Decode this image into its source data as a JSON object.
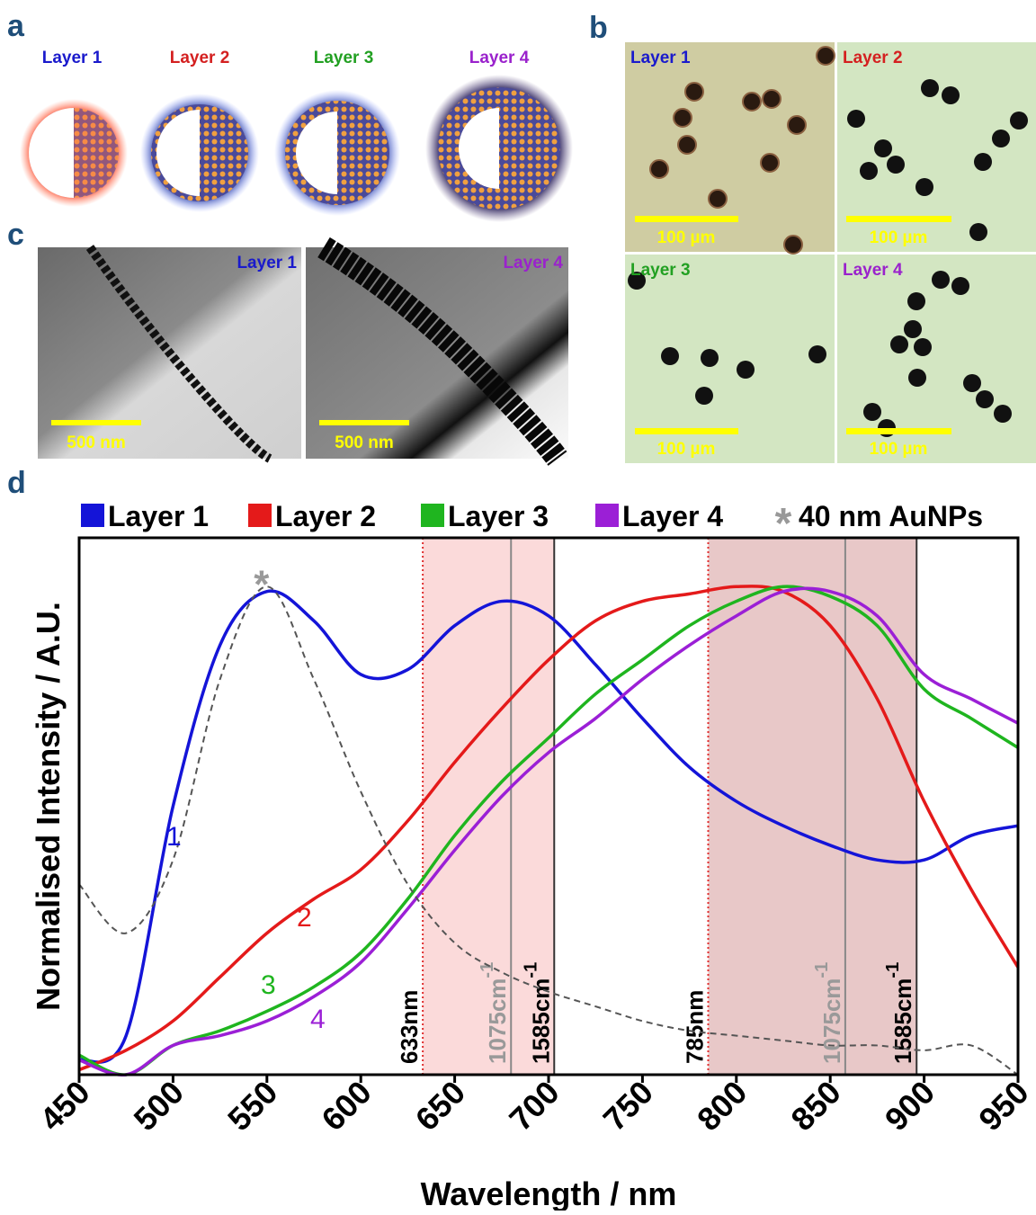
{
  "panel_a": {
    "label": "a",
    "layers": [
      "Layer 1",
      "Layer 2",
      "Layer 3",
      "Layer 4"
    ]
  },
  "panel_b": {
    "label": "b",
    "images": [
      {
        "title": "Layer 1",
        "scale": "100 µm"
      },
      {
        "title": "Layer 2",
        "scale": "100 µm"
      },
      {
        "title": "Layer 3",
        "scale": "100 µm"
      },
      {
        "title": "Layer 4",
        "scale": "100 µm"
      }
    ]
  },
  "panel_c": {
    "label": "c",
    "images": [
      {
        "title": "Layer 1",
        "scale": "500 nm"
      },
      {
        "title": "Layer 4",
        "scale": "500 nm"
      }
    ]
  },
  "chart_data": {
    "type": "line",
    "panel_label": "d",
    "xlabel": "Wavelength / nm",
    "ylabel": "Normalised Intensity / A.U.",
    "x": [
      450,
      475,
      500,
      525,
      550,
      575,
      600,
      625,
      650,
      675,
      700,
      725,
      750,
      775,
      800,
      825,
      850,
      875,
      900,
      925,
      950
    ],
    "xlim": [
      450,
      950
    ],
    "xticks": [
      450,
      500,
      550,
      600,
      650,
      700,
      750,
      800,
      850,
      900,
      950
    ],
    "ylim": [
      0,
      1.1
    ],
    "series": [
      {
        "name": "Layer 1",
        "label": "1",
        "color": "#1414d8",
        "values": [
          0.03,
          0.08,
          0.55,
          0.88,
          0.99,
          0.93,
          0.82,
          0.83,
          0.92,
          0.97,
          0.94,
          0.84,
          0.73,
          0.63,
          0.56,
          0.51,
          0.47,
          0.44,
          0.44,
          0.49,
          0.51
        ]
      },
      {
        "name": "Layer 2",
        "label": "2",
        "color": "#e41a1a",
        "values": [
          0.01,
          0.05,
          0.11,
          0.2,
          0.29,
          0.36,
          0.42,
          0.52,
          0.64,
          0.75,
          0.85,
          0.93,
          0.97,
          0.985,
          1.0,
          0.99,
          0.92,
          0.77,
          0.56,
          0.38,
          0.22
        ]
      },
      {
        "name": "Layer 3",
        "label": "3",
        "color": "#1fb51f",
        "values": [
          0.04,
          0.0,
          0.06,
          0.09,
          0.13,
          0.18,
          0.25,
          0.36,
          0.49,
          0.6,
          0.69,
          0.78,
          0.85,
          0.92,
          0.97,
          1.0,
          0.98,
          0.92,
          0.79,
          0.73,
          0.67
        ]
      },
      {
        "name": "Layer 4",
        "label": "4",
        "color": "#9b1fd6",
        "values": [
          0.03,
          0.0,
          0.06,
          0.08,
          0.11,
          0.16,
          0.23,
          0.34,
          0.46,
          0.57,
          0.66,
          0.73,
          0.81,
          0.88,
          0.94,
          0.99,
          0.99,
          0.94,
          0.82,
          0.77,
          0.72
        ]
      },
      {
        "name": "40 nm AuNPs",
        "symbol": "*",
        "color": "#555555",
        "dashed": true,
        "values": [
          0.39,
          0.29,
          0.44,
          0.81,
          1.0,
          0.81,
          0.58,
          0.39,
          0.27,
          0.21,
          0.17,
          0.14,
          0.11,
          0.09,
          0.08,
          0.07,
          0.06,
          0.06,
          0.05,
          0.06,
          0.0
        ]
      }
    ],
    "bands": [
      {
        "start": 633,
        "end": 703,
        "color": "#fbdada"
      },
      {
        "start": 785,
        "end": 896,
        "color": "#e8c8c8"
      }
    ],
    "markers": [
      {
        "x": 633,
        "label": "633nm",
        "style": "laser"
      },
      {
        "x": 680,
        "label": "1075cm",
        "superscript": "-1",
        "style": "weak"
      },
      {
        "x": 703,
        "label": "1585cm",
        "superscript": "-1",
        "style": "strong"
      },
      {
        "x": 785,
        "label": "785nm",
        "style": "laser"
      },
      {
        "x": 858,
        "label": "1075cm",
        "superscript": "-1",
        "style": "weak"
      },
      {
        "x": 896,
        "label": "1585cm",
        "superscript": "-1",
        "style": "strong"
      }
    ]
  }
}
